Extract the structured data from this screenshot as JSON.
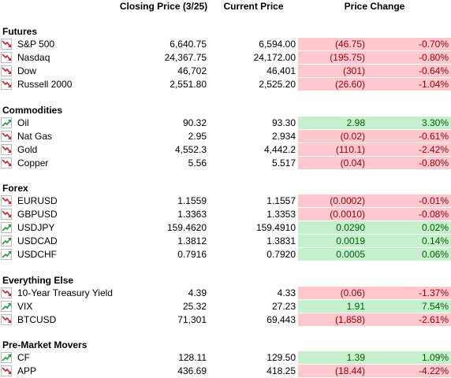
{
  "header": {
    "closing": "Closing Price (3/25)",
    "current": "Current Price",
    "change": "Price Change"
  },
  "sections": [
    {
      "title": "Futures",
      "rows": [
        [
          "S&P 500",
          "6,640.75",
          "6,594.00",
          "(46.75)",
          "-0.70%"
        ],
        [
          "Nasdaq",
          "24,367.75",
          "24,172.00",
          "(195.75)",
          "-0.80%"
        ],
        [
          "Dow",
          "46,702",
          "46,401",
          "(301)",
          "-0.64%"
        ],
        [
          "Russell 2000",
          "2,551.80",
          "2,525.20",
          "(26.60)",
          "-1.04%"
        ]
      ]
    },
    {
      "title": "Commodities",
      "rows": [
        [
          "Oil",
          "90.32",
          "93.30",
          "2.98",
          "3.30%"
        ],
        [
          "Nat Gas",
          "2.95",
          "2.934",
          "(0.02)",
          "-0.61%"
        ],
        [
          "Gold",
          "4,552.3",
          "4,442.2",
          "(110.1)",
          "-2.42%"
        ],
        [
          "Copper",
          "5.56",
          "5.517",
          "(0.04)",
          "-0.80%"
        ]
      ]
    },
    {
      "title": "Forex",
      "rows": [
        [
          "EURUSD",
          "1.1559",
          "1.1557",
          "(0.0002)",
          "-0.01%"
        ],
        [
          "GBPUSD",
          "1.3363",
          "1.3353",
          "(0.0010)",
          "-0.08%"
        ],
        [
          "USDJPY",
          "159.4620",
          "159.4910",
          "0.0290",
          "0.02%"
        ],
        [
          "USDCAD",
          "1.3812",
          "1.3831",
          "0.0019",
          "0.14%"
        ],
        [
          "USDCHF",
          "0.7916",
          "0.7920",
          "0.0005",
          "0.06%"
        ]
      ]
    },
    {
      "title": "Everything Else",
      "rows": [
        [
          "10-Year Treasury Yield",
          "4.39",
          "4.33",
          "(0.06)",
          "-1.37%"
        ],
        [
          "VIX",
          "25.32",
          "27.23",
          "1.91",
          "7.54%"
        ],
        [
          "BTCUSD",
          "71,301",
          "69,443",
          "(1,858)",
          "-2.61%"
        ]
      ]
    },
    {
      "title": "Pre-Market Movers",
      "rows": [
        [
          "CF",
          "128.11",
          "129.50",
          "1.39",
          "1.09%"
        ],
        [
          "APP",
          "436.69",
          "418.25",
          "(18.44)",
          "-4.22%"
        ]
      ]
    }
  ]
}
